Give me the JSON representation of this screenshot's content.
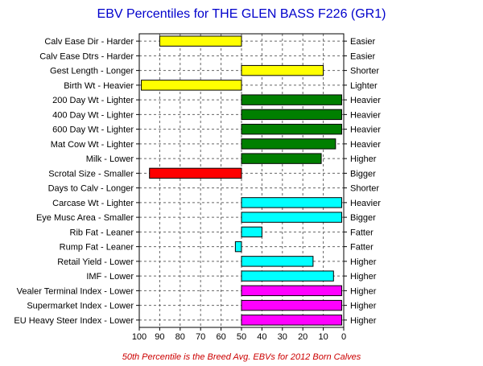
{
  "chart_data": {
    "type": "bar",
    "title": "EBV Percentiles for THE GLEN BASS F226 (GR1)",
    "footnote": "50th Percentile is the Breed Avg. EBVs for 2012 Born Calves",
    "baseline": 50,
    "xlim": [
      100,
      0
    ],
    "x_ticks": [
      "100",
      "90",
      "80",
      "70",
      "60",
      "50",
      "40",
      "30",
      "20",
      "10",
      "0"
    ],
    "grid": true,
    "categories": [
      "Calv Ease Dir - Harder",
      "Calv Ease Dtrs - Harder",
      "Gest Length - Longer",
      "Birth Wt - Heavier",
      "200 Day Wt - Lighter",
      "400 Day Wt - Lighter",
      "600 Day Wt - Lighter",
      "Mat Cow Wt - Lighter",
      "Milk - Lower",
      "Scrotal Size - Smaller",
      "Days to Calv - Longer",
      "Carcase Wt - Lighter",
      "Eye Musc Area - Smaller",
      "Rib Fat - Leaner",
      "Rump Fat - Leaner",
      "Retail Yield - Lower",
      "IMF - Lower",
      "Vealer Terminal Index - Lower",
      "Supermarket Index - Lower",
      "EU Heavy Steer Index - Lower"
    ],
    "right_labels": [
      "Easier",
      "Easier",
      "Shorter",
      "Lighter",
      "Heavier",
      "Heavier",
      "Heavier",
      "Heavier",
      "Higher",
      "Bigger",
      "Shorter",
      "Heavier",
      "Bigger",
      "Fatter",
      "Fatter",
      "Higher",
      "Higher",
      "Higher",
      "Higher",
      "Higher"
    ],
    "values": [
      90,
      null,
      10,
      99,
      1,
      1,
      1,
      4,
      11,
      95,
      null,
      1,
      1,
      40,
      53,
      15,
      5,
      1,
      1,
      1
    ],
    "colors": [
      "#ffff00",
      null,
      "#ffff00",
      "#ffff00",
      "#007f00",
      "#007f00",
      "#007f00",
      "#007f00",
      "#007f00",
      "#ff0000",
      null,
      "#00ffff",
      "#00ffff",
      "#00ffff",
      "#00ffff",
      "#00ffff",
      "#00ffff",
      "#ff00ff",
      "#ff00ff",
      "#ff00ff"
    ],
    "title_color": "#0000cc",
    "footnote_color": "#cc0000"
  }
}
